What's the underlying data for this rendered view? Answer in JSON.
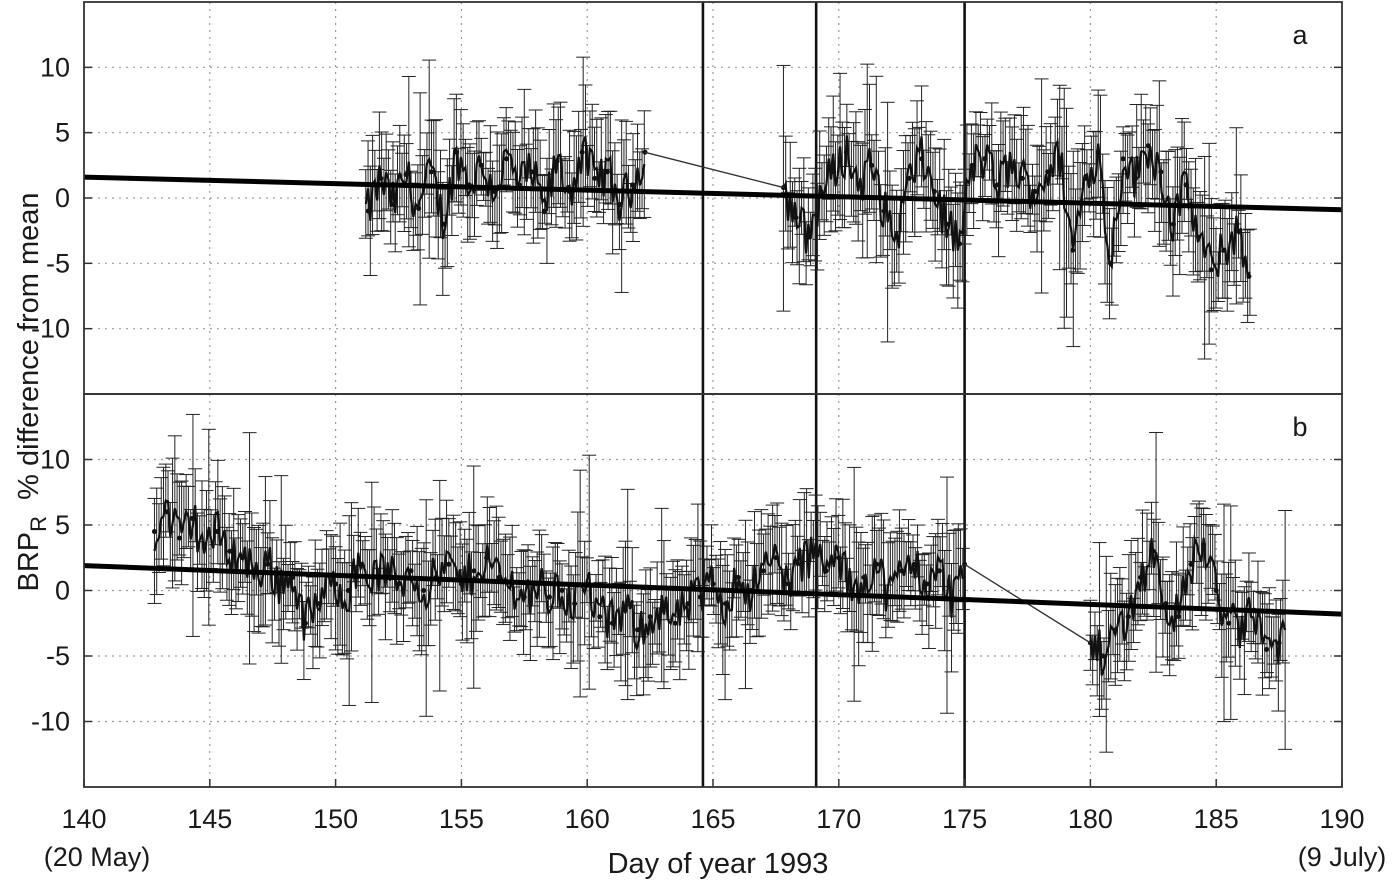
{
  "chart_data": {
    "type": "line",
    "xlabel": "Day of year 1993",
    "ylabel_main": "BRP",
    "ylabel_sub": "R",
    "ylabel_rest": "  % difference from mean",
    "xlim": [
      140,
      190
    ],
    "x_ticks": [
      140,
      145,
      150,
      155,
      160,
      165,
      170,
      175,
      180,
      185,
      190
    ],
    "x_tick_labels": [
      "140",
      "145",
      "150",
      "155",
      "160",
      "165",
      "170",
      "175",
      "180",
      "185",
      "190"
    ],
    "x_start_note": "(20 May)",
    "x_end_note": "(9 July)",
    "grid": true,
    "vertical_markers": [
      164.6,
      169.1,
      175.0
    ],
    "panels": [
      {
        "label": "a",
        "ylim": [
          -15,
          15
        ],
        "y_ticks": [
          10,
          5,
          0,
          -5,
          -10
        ],
        "y_tick_labels": [
          "10",
          "5",
          "0",
          "-5",
          "-10"
        ],
        "trend": {
          "x": [
            140,
            190
          ],
          "y": [
            1.6,
            -0.9
          ]
        },
        "segments": [
          [
            151.2,
            162.3
          ],
          [
            167.8,
            186.4
          ]
        ],
        "errorbar_typical": 3.0,
        "series": [
          {
            "x": [
              151.3,
              151.8,
              152.3,
              152.8,
              153.3,
              153.8,
              154.3,
              154.8,
              155.3,
              155.8,
              156.3,
              156.8,
              157.3,
              157.8,
              158.3,
              158.8,
              159.3,
              159.8,
              160.3,
              160.8,
              161.3,
              161.8,
              162.3
            ],
            "y": [
              -1.0,
              1.5,
              -0.5,
              1.8,
              -0.8,
              2.0,
              -2.0,
              3.5,
              1.0,
              2.5,
              0.5,
              3.0,
              1.0,
              2.0,
              -1.0,
              2.8,
              0.5,
              3.5,
              1.5,
              2.0,
              -0.5,
              1.0,
              3.5
            ]
          },
          {
            "x": [
              167.8,
              168.3,
              168.8,
              169.3,
              169.8,
              170.3,
              170.8,
              171.3,
              171.8,
              172.3,
              172.8,
              173.3,
              173.8,
              174.3,
              174.8,
              175.3,
              175.8,
              176.3,
              176.8,
              177.3,
              177.8,
              178.3,
              178.8,
              179.3,
              179.8,
              180.3,
              180.8,
              181.3,
              181.8,
              182.3,
              182.8,
              183.3,
              183.8,
              184.3,
              184.8,
              185.3,
              185.8,
              186.3
            ],
            "y": [
              0.8,
              -1.5,
              -3.0,
              0.5,
              2.0,
              3.5,
              1.0,
              2.5,
              -1.0,
              -3.0,
              1.5,
              3.0,
              0.5,
              -2.0,
              -3.5,
              2.5,
              3.0,
              1.0,
              2.5,
              1.5,
              0.5,
              2.0,
              3.0,
              -4.0,
              1.5,
              3.5,
              -5.0,
              3.0,
              1.5,
              4.0,
              2.0,
              -2.0,
              1.0,
              -3.0,
              -5.5,
              -4.0,
              -2.5,
              -6.0
            ]
          }
        ]
      },
      {
        "label": "b",
        "ylim": [
          -15,
          15
        ],
        "y_ticks": [
          10,
          5,
          0,
          -5,
          -10
        ],
        "y_tick_labels": [
          "10",
          "5",
          "0",
          "-5",
          "-10"
        ],
        "trend": {
          "x": [
            140,
            190
          ],
          "y": [
            1.9,
            -1.8
          ]
        },
        "segments": [
          [
            142.8,
            175.0
          ],
          [
            180.0,
            187.8
          ]
        ],
        "errorbar_typical": 2.8,
        "series": [
          {
            "x": [
              142.8,
              143.3,
              143.8,
              144.3,
              144.8,
              145.3,
              145.8,
              146.3,
              146.8,
              147.3,
              147.8,
              148.3,
              148.8,
              149.3,
              150.0,
              150.5,
              151.0,
              151.5,
              152.0,
              152.5,
              153.0,
              153.5,
              154.0,
              154.5,
              155.0,
              155.5,
              156.0,
              156.5,
              157.0,
              157.5,
              158.0,
              158.5,
              159.0,
              159.5,
              160.0,
              160.5,
              161.0,
              161.5,
              162.0,
              162.5,
              163.0,
              163.5,
              164.0,
              164.5,
              165.0,
              165.5,
              166.0,
              166.5,
              167.0,
              167.5,
              168.0,
              168.5,
              169.0,
              169.5,
              170.0,
              170.5,
              171.0,
              171.5,
              172.0,
              172.5,
              173.0,
              173.5,
              174.0,
              174.5,
              175.0
            ],
            "y": [
              4.5,
              6.0,
              4.0,
              5.5,
              3.5,
              4.5,
              3.0,
              2.5,
              1.5,
              2.0,
              0.5,
              1.0,
              -2.5,
              -1.0,
              0.5,
              0.0,
              2.0,
              1.0,
              1.5,
              0.5,
              1.5,
              0.0,
              1.0,
              2.0,
              0.5,
              1.5,
              2.5,
              1.0,
              0.5,
              -0.5,
              0.5,
              -0.5,
              0.0,
              -1.0,
              0.5,
              -2.0,
              -2.5,
              -1.5,
              -3.0,
              -2.0,
              -1.5,
              -2.5,
              -1.0,
              -0.5,
              0.5,
              -1.0,
              1.0,
              0.0,
              1.5,
              2.5,
              0.5,
              2.0,
              3.0,
              1.5,
              2.5,
              0.0,
              1.0,
              2.0,
              -0.5,
              1.5,
              2.0,
              0.5,
              1.5,
              -0.5,
              2.0
            ]
          },
          {
            "x": [
              180.0,
              180.5,
              181.0,
              181.5,
              182.0,
              182.5,
              183.0,
              183.5,
              184.0,
              184.5,
              185.0,
              185.5,
              186.0,
              186.5,
              187.0,
              187.5
            ],
            "y": [
              -4.0,
              -5.0,
              -3.0,
              -2.0,
              1.0,
              3.0,
              -1.0,
              -2.0,
              2.0,
              3.5,
              0.0,
              -2.5,
              -3.0,
              -1.5,
              -4.5,
              -4.0
            ]
          }
        ]
      }
    ]
  }
}
